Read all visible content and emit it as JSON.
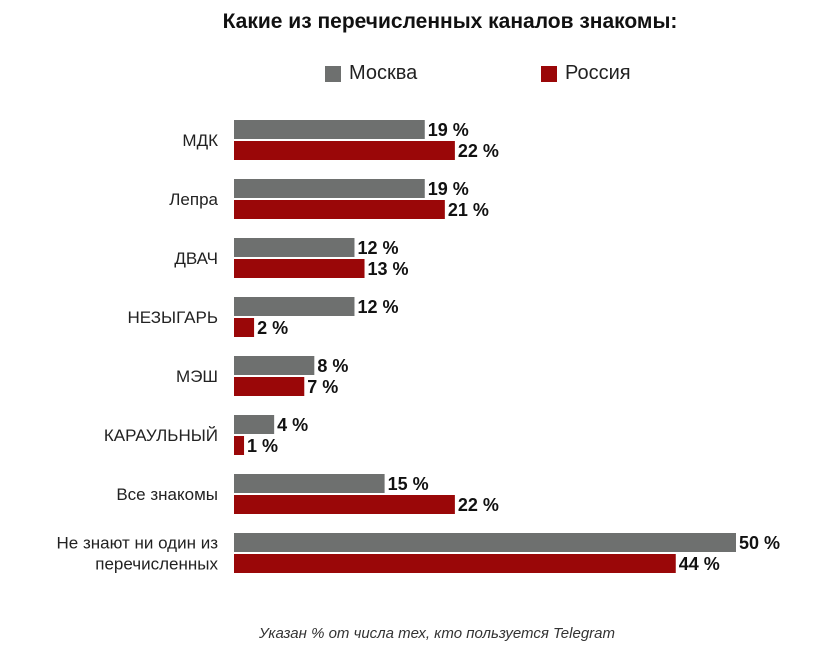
{
  "colors": {
    "moscow": "#6e706f",
    "russia": "#9a0708"
  },
  "chart_data": {
    "type": "bar",
    "orientation": "horizontal",
    "title": "Какие из перечисленных каналов знакомы:",
    "footnote": "Указан % от числа тех, кто пользуется Telegram",
    "legend_position": "top",
    "grid": false,
    "xlim": [
      0,
      50
    ],
    "categories": [
      [
        "МДК"
      ],
      [
        "Лепра"
      ],
      [
        "ДВАЧ"
      ],
      [
        "НЕЗЫГАРЬ"
      ],
      [
        "МЭШ"
      ],
      [
        "КАРАУЛЬНЫЙ"
      ],
      [
        "Все знакомы"
      ],
      [
        "Не знают ни один из",
        "перечисленных"
      ]
    ],
    "series": [
      {
        "name": "Москва",
        "values": [
          19,
          19,
          12,
          12,
          8,
          4,
          15,
          50
        ],
        "labels": [
          "19 %",
          "19 %",
          "12 %",
          "12 %",
          "8 %",
          "4 %",
          "15 %",
          "50 %"
        ]
      },
      {
        "name": "Россия",
        "values": [
          22,
          21,
          13,
          2,
          7,
          1,
          22,
          44
        ],
        "labels": [
          "22 %",
          "21 %",
          "13 %",
          "2 %",
          "7 %",
          "1 %",
          "22 %",
          "44 %"
        ]
      }
    ]
  }
}
